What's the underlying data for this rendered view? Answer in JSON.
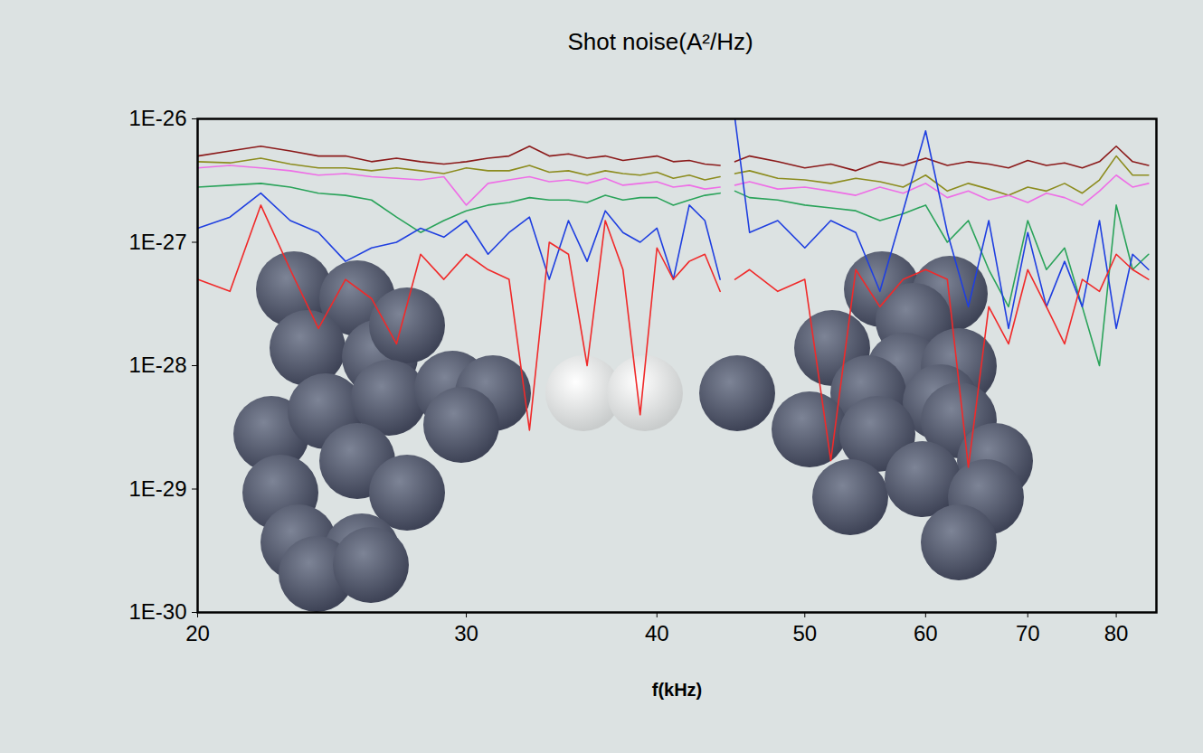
{
  "chart_data": {
    "type": "line",
    "title": "Shot noise(A²/Hz)",
    "x_label": "f(kHz)",
    "log": true,
    "grid": false,
    "xlim": [
      20,
      85
    ],
    "xticks": [
      20,
      30,
      40,
      50,
      60,
      70,
      80
    ],
    "ylim": [
      1e-30,
      1e-26
    ],
    "yticks": [
      {
        "value": 1e-30,
        "label": "1E-30"
      },
      {
        "value": 1e-29,
        "label": "1E-29"
      },
      {
        "value": 1e-28,
        "label": "1E-28"
      },
      {
        "value": 1e-27,
        "label": "1E-27"
      },
      {
        "value": 1e-26,
        "label": "1E-26"
      }
    ],
    "x": [
      20,
      21,
      22,
      23,
      24,
      25,
      26,
      27,
      28,
      29,
      30,
      31,
      32,
      33,
      34,
      35,
      36,
      37,
      38,
      39,
      40,
      41,
      42,
      43,
      44,
      44.5,
      45,
      46,
      48,
      50,
      52,
      54,
      56,
      58,
      60,
      62,
      64,
      66,
      68,
      70,
      72,
      74,
      76,
      78,
      80,
      82,
      84
    ],
    "series": [
      {
        "color": "#8b1a1a",
        "values": [
          5e-27,
          5.5e-27,
          6e-27,
          5.5e-27,
          5e-27,
          5e-27,
          4.5e-27,
          4.8e-27,
          4.5e-27,
          4.3e-27,
          4.5e-27,
          4.8e-27,
          5e-27,
          6e-27,
          5e-27,
          5.2e-27,
          4.8e-27,
          5e-27,
          4.6e-27,
          4.8e-27,
          5e-27,
          4.5e-27,
          4.6e-27,
          4.3e-27,
          4.2e-27,
          null,
          4.5e-27,
          5e-27,
          4.5e-27,
          4e-27,
          4.3e-27,
          3.8e-27,
          4.5e-27,
          4.2e-27,
          4.8e-27,
          4.2e-27,
          4.5e-27,
          4.3e-27,
          4e-27,
          4.6e-27,
          4.2e-27,
          4.4e-27,
          4e-27,
          4.5e-27,
          6e-27,
          4.5e-27,
          4.2e-27
        ]
      },
      {
        "color": "#8c8c1e",
        "values": [
          4.5e-27,
          4.4e-27,
          4.8e-27,
          4.3e-27,
          4e-27,
          4e-27,
          3.8e-27,
          4e-27,
          3.8e-27,
          3.6e-27,
          4e-27,
          3.8e-27,
          3.8e-27,
          4.2e-27,
          3.7e-27,
          3.8e-27,
          3.5e-27,
          3.8e-27,
          3.6e-27,
          3.5e-27,
          3.7e-27,
          3.3e-27,
          3.5e-27,
          3.2e-27,
          3.4e-27,
          null,
          3.6e-27,
          3.8e-27,
          3.3e-27,
          3.2e-27,
          3e-27,
          3.3e-27,
          3.1e-27,
          2.8e-27,
          3.5e-27,
          2.6e-27,
          3e-27,
          2.7e-27,
          2.4e-27,
          2.8e-27,
          2.6e-27,
          3e-27,
          2.5e-27,
          3.2e-27,
          5e-27,
          3.5e-27,
          3.5e-27
        ]
      },
      {
        "color": "#ee6ee6",
        "values": [
          4e-27,
          4.2e-27,
          4e-27,
          3.8e-27,
          3.5e-27,
          3.6e-27,
          3.4e-27,
          3.3e-27,
          3.2e-27,
          3.4e-27,
          2e-27,
          3e-27,
          3.2e-27,
          3.4e-27,
          3.1e-27,
          3.2e-27,
          3e-27,
          3.3e-27,
          2.9e-27,
          3e-27,
          3.1e-27,
          2.8e-27,
          2.9e-27,
          2.7e-27,
          2.8e-27,
          null,
          2.9e-27,
          3.1e-27,
          2.7e-27,
          2.8e-27,
          2.6e-27,
          2.4e-27,
          2.8e-27,
          2.5e-27,
          3e-27,
          2.3e-27,
          2.6e-27,
          2.2e-27,
          2.4e-27,
          2.1e-27,
          2.5e-27,
          2.3e-27,
          2e-27,
          2.6e-27,
          3.5e-27,
          2.8e-27,
          3e-27
        ]
      },
      {
        "color": "#2aa35a",
        "values": [
          2.8e-27,
          2.9e-27,
          3e-27,
          2.8e-27,
          2.5e-27,
          2.4e-27,
          2.2e-27,
          1.6e-27,
          1.2e-27,
          1.5e-27,
          1.8e-27,
          2e-27,
          2.1e-27,
          2.3e-27,
          2.2e-27,
          2.2e-27,
          2.1e-27,
          2.4e-27,
          2.2e-27,
          2.3e-27,
          2.3e-27,
          2e-27,
          2.2e-27,
          2.4e-27,
          2.5e-27,
          null,
          2.6e-27,
          2.3e-27,
          2.2e-27,
          2e-27,
          1.9e-27,
          1.8e-27,
          1.5e-27,
          1.7e-27,
          2e-27,
          1e-27,
          1.5e-27,
          6e-28,
          3e-28,
          1.5e-27,
          6e-28,
          9e-28,
          3e-28,
          1e-28,
          2e-27,
          6e-28,
          8e-28
        ]
      },
      {
        "color": "#1f3fe0",
        "values": [
          1.3e-27,
          1.6e-27,
          2.5e-27,
          1.5e-27,
          1.2e-27,
          7e-28,
          9e-28,
          1e-27,
          1.3e-27,
          1.1e-27,
          1.5e-27,
          8e-28,
          1.2e-27,
          1.6e-27,
          5e-28,
          1.5e-27,
          7e-28,
          1.8e-27,
          1.2e-27,
          1e-27,
          1.3e-27,
          5e-28,
          2e-27,
          1.5e-27,
          5e-28,
          null,
          1e-26,
          1.2e-27,
          1.5e-27,
          9e-28,
          1.5e-27,
          1.2e-27,
          4e-28,
          1.8e-27,
          8e-27,
          1.2e-27,
          3e-28,
          1.5e-27,
          2e-28,
          1.2e-27,
          3e-28,
          7e-28,
          3e-28,
          1.5e-27,
          2e-28,
          8e-28,
          6e-28
        ]
      },
      {
        "color": "#f02a2a",
        "values": [
          5e-28,
          4e-28,
          2e-27,
          6e-28,
          2e-28,
          5e-28,
          3.5e-28,
          1.5e-28,
          8e-28,
          5e-28,
          8e-28,
          6e-28,
          5e-28,
          3e-29,
          1e-27,
          8e-28,
          1e-28,
          1.5e-27,
          6e-28,
          4e-29,
          9e-28,
          5e-28,
          7e-28,
          8e-28,
          4e-28,
          null,
          5e-28,
          6e-28,
          4e-28,
          5e-28,
          1.7e-29,
          6e-28,
          3e-28,
          5e-28,
          6e-28,
          5e-28,
          1.5e-29,
          3e-28,
          1.5e-28,
          6e-28,
          3e-28,
          1.5e-28,
          5e-28,
          4e-28,
          8e-28,
          6e-28,
          5e-28
        ]
      }
    ]
  }
}
